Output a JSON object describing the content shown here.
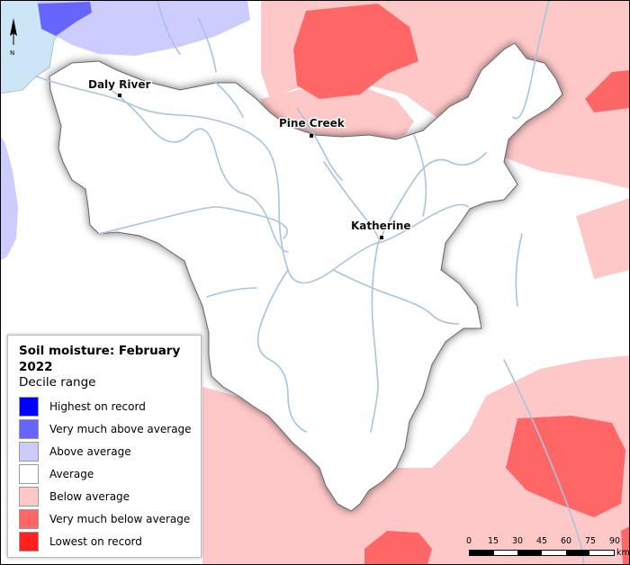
{
  "legend": {
    "title": "Soil moisture: February 2022",
    "subtitle": "Decile range",
    "items": [
      {
        "label": "Highest on record",
        "color": "#0000ff"
      },
      {
        "label": "Very much above average",
        "color": "#6666ff"
      },
      {
        "label": "Above average",
        "color": "#ccccff"
      },
      {
        "label": "Average",
        "color": "#ffffff"
      },
      {
        "label": "Below average",
        "color": "#ffc8c8"
      },
      {
        "label": "Very much below average",
        "color": "#ff6666"
      },
      {
        "label": "Lowest on record",
        "color": "#ff2020"
      }
    ]
  },
  "towns": [
    {
      "name": "Daly River"
    },
    {
      "name": "Pine Creek"
    },
    {
      "name": "Katherine"
    }
  ],
  "scale": {
    "ticks": [
      "0",
      "15",
      "30",
      "45",
      "60",
      "75",
      "90"
    ],
    "unit": "km"
  },
  "north_label": "N",
  "colors": {
    "sea": "#cce6f8",
    "river": "#a8c4dc",
    "catchment_outline": "#666666"
  }
}
